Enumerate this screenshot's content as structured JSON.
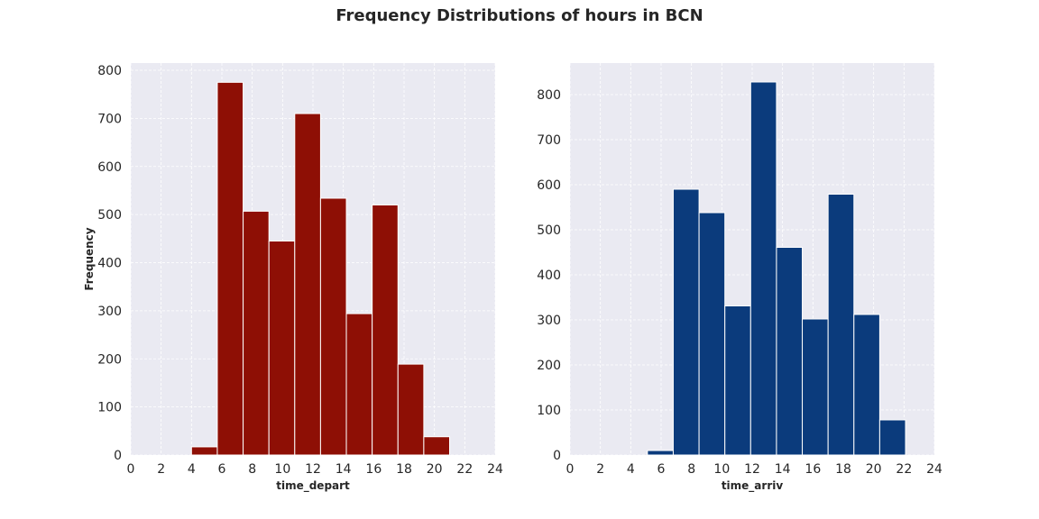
{
  "title": "Frequency Distributions of hours in BCN",
  "chart_data": [
    {
      "type": "bar",
      "subtype": "histogram",
      "xlabel": "time_depart",
      "ylabel": "Frequency",
      "xlim": [
        0,
        24
      ],
      "ylim": [
        0,
        815
      ],
      "xticks": [
        0,
        2,
        4,
        6,
        8,
        10,
        12,
        14,
        16,
        18,
        20,
        22,
        24
      ],
      "yticks": [
        0,
        100,
        200,
        300,
        400,
        500,
        600,
        700,
        800
      ],
      "bin_edges": [
        4.0,
        5.7,
        7.4,
        9.1,
        10.8,
        12.5,
        14.2,
        15.9,
        17.6,
        19.3,
        21.0
      ],
      "values": [
        17,
        775,
        507,
        445,
        710,
        534,
        294,
        520,
        189,
        38
      ],
      "color": "#8e0f05",
      "grid": true
    },
    {
      "type": "bar",
      "subtype": "histogram",
      "xlabel": "time_arriv",
      "ylabel": "",
      "xlim": [
        0,
        24
      ],
      "ylim": [
        0,
        870
      ],
      "xticks": [
        0,
        2,
        4,
        6,
        8,
        10,
        12,
        14,
        16,
        18,
        20,
        22,
        24
      ],
      "yticks": [
        0,
        100,
        200,
        300,
        400,
        500,
        600,
        700,
        800
      ],
      "bin_edges": [
        5.1,
        6.8,
        8.5,
        10.2,
        11.9,
        13.6,
        15.3,
        17.0,
        18.7,
        20.4,
        22.1
      ],
      "values": [
        10,
        590,
        538,
        331,
        828,
        461,
        302,
        579,
        312,
        78
      ],
      "color": "#0b3b7c",
      "grid": true
    }
  ]
}
